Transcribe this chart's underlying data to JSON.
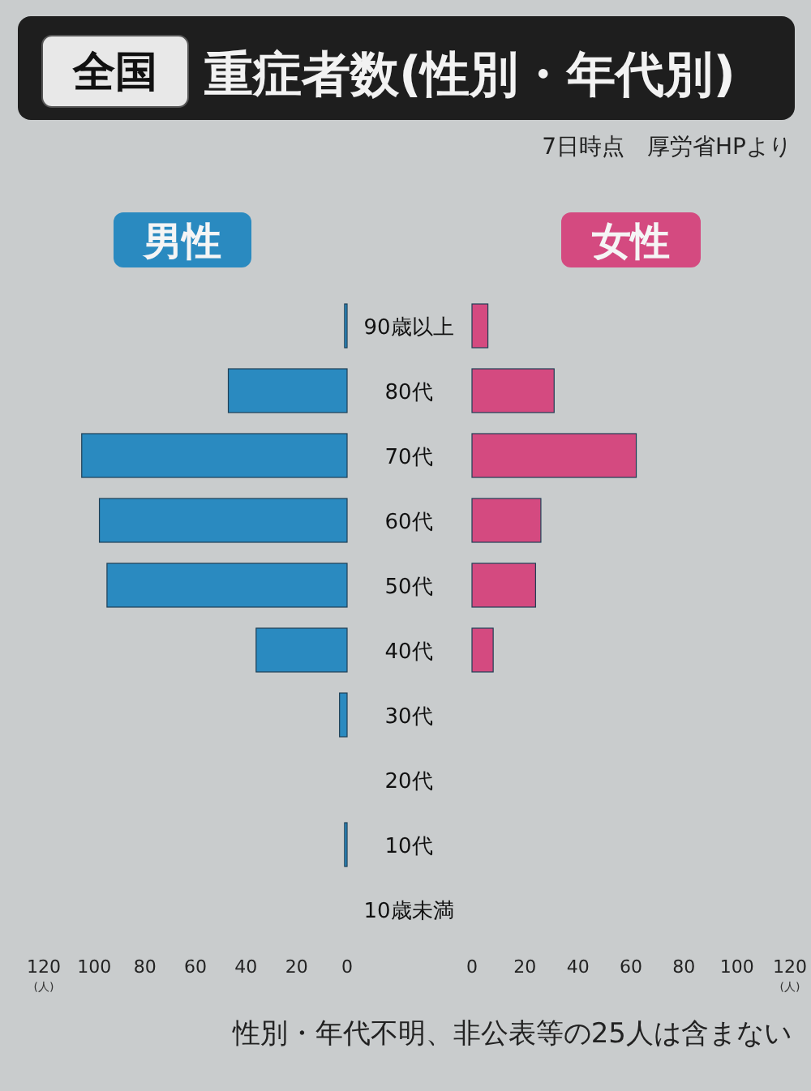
{
  "chart_data": [
    {
      "type": "bar",
      "orientation": "horizontal",
      "title": "全国",
      "subtitle": "重症者数(性別・年代別)",
      "xlabel": "(人)",
      "annotations": [
        "7日時点　厚労省HPより",
        "性別・年代不明、非公表等の25人は含まない"
      ],
      "categories": [
        "90歳以上",
        "80代",
        "70代",
        "60代",
        "50代",
        "40代",
        "30代",
        "20代",
        "10代",
        "10歳未満"
      ],
      "series": [
        {
          "name": "男性",
          "color": "#2a8ac0",
          "values": [
            1,
            47,
            105,
            98,
            95,
            36,
            3,
            0,
            1,
            0
          ]
        }
      ],
      "xlim": [
        120,
        0
      ],
      "xticks": [
        120,
        100,
        80,
        60,
        40,
        20,
        0
      ]
    },
    {
      "type": "bar",
      "orientation": "horizontal",
      "xlabel": "(人)",
      "categories": [
        "90歳以上",
        "80代",
        "70代",
        "60代",
        "50代",
        "40代",
        "30代",
        "20代",
        "10代",
        "10歳未満"
      ],
      "series": [
        {
          "name": "女性",
          "color": "#d44a80",
          "values": [
            6,
            31,
            62,
            26,
            24,
            8,
            0,
            0,
            0,
            0
          ]
        }
      ],
      "xlim": [
        0,
        120
      ],
      "xticks": [
        0,
        20,
        40,
        60,
        80,
        100,
        120
      ],
      "tick_labels": "x"
    }
  ]
}
